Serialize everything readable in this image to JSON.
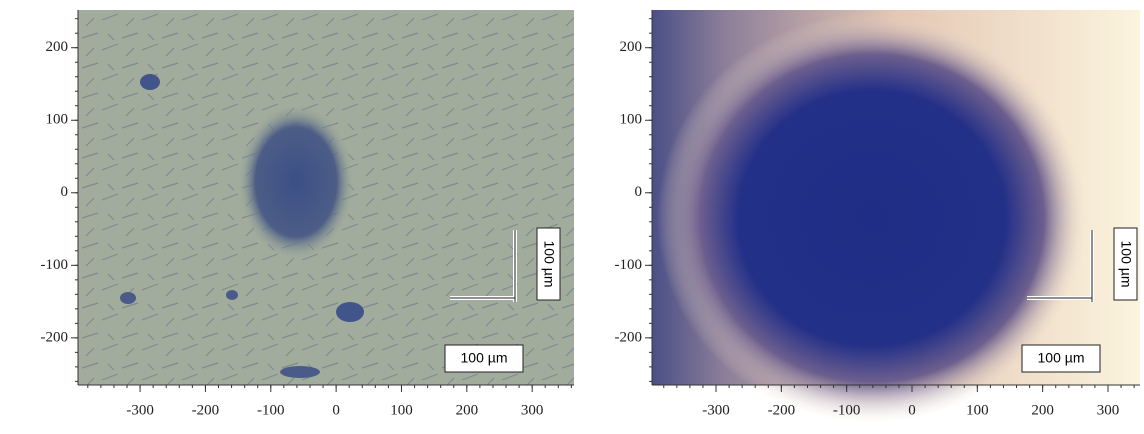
{
  "panels": [
    {
      "xlim": [
        -395,
        364
      ],
      "ylim": [
        -265,
        252
      ],
      "xticks": [
        -300,
        -200,
        -100,
        0,
        100,
        200,
        300
      ],
      "yticks": [
        200,
        100,
        0,
        -100,
        -200
      ],
      "scale_bar_vertical_label": "100 µm",
      "scale_bar_label": "100 µm"
    },
    {
      "xlim": [
        -398,
        349
      ],
      "ylim": [
        -265,
        252
      ],
      "xticks": [
        -300,
        -200,
        -100,
        0,
        100,
        200,
        300
      ],
      "yticks": [
        200,
        100,
        0,
        -100,
        -200
      ],
      "scale_bar_vertical_label": "100 µm",
      "scale_bar_label": "100 µm"
    }
  ]
}
